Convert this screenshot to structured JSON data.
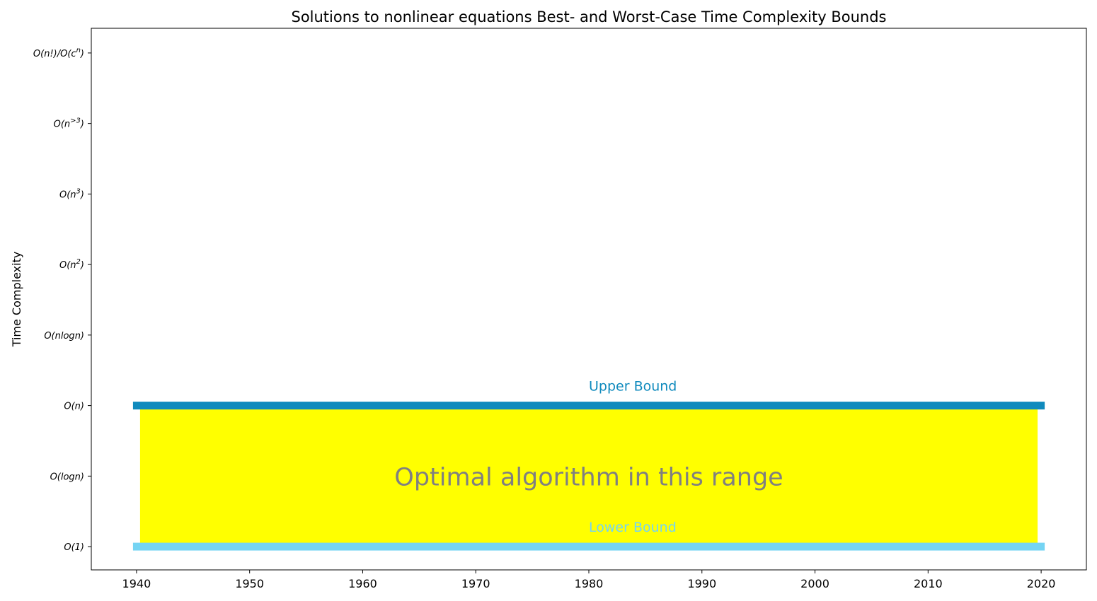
{
  "chart_data": {
    "type": "range",
    "title": "Solutions to nonlinear equations Best- and Worst-Case Time Complexity Bounds",
    "xlabel": "",
    "ylabel": "Time Complexity",
    "xlim": [
      1936,
      2024
    ],
    "ylim": [
      -0.33,
      7.35
    ],
    "x_ticks": [
      1940,
      1950,
      1960,
      1970,
      1980,
      1990,
      2000,
      2010,
      2020
    ],
    "y_ticks": [
      {
        "value": 0,
        "base": "O(1)",
        "sup": ""
      },
      {
        "value": 1,
        "base": "O(logn)",
        "sup": ""
      },
      {
        "value": 2,
        "base": "O(n)",
        "sup": ""
      },
      {
        "value": 3,
        "base": "O(nlogn)",
        "sup": ""
      },
      {
        "value": 4,
        "base": "O(n",
        "sup": "2",
        "tail": ")"
      },
      {
        "value": 5,
        "base": "O(n",
        "sup": "3",
        "tail": ")"
      },
      {
        "value": 6,
        "base": "O(n",
        "sup": ">3",
        "tail": ")"
      },
      {
        "value": 7,
        "base": "O(n!)/O(c",
        "sup": "n",
        "tail": ")"
      }
    ],
    "grid": false,
    "bounds": [
      {
        "name": "Upper Bound",
        "label": "Upper Bound",
        "x_start": 1940,
        "x_end": 2020,
        "y": 2,
        "color": "#0f8abd",
        "label_x": 1980
      },
      {
        "name": "Lower Bound",
        "label": "Lower Bound",
        "x_start": 1940,
        "x_end": 2020,
        "y": 0,
        "color": "#75d4f3",
        "label_x": 1980
      }
    ],
    "region": {
      "label": "Optimal algorithm in this range",
      "x_start": 1940,
      "x_end": 2020,
      "y_low": 0,
      "y_high": 2,
      "fill": "#ffff00",
      "text_color": "#808080"
    }
  }
}
